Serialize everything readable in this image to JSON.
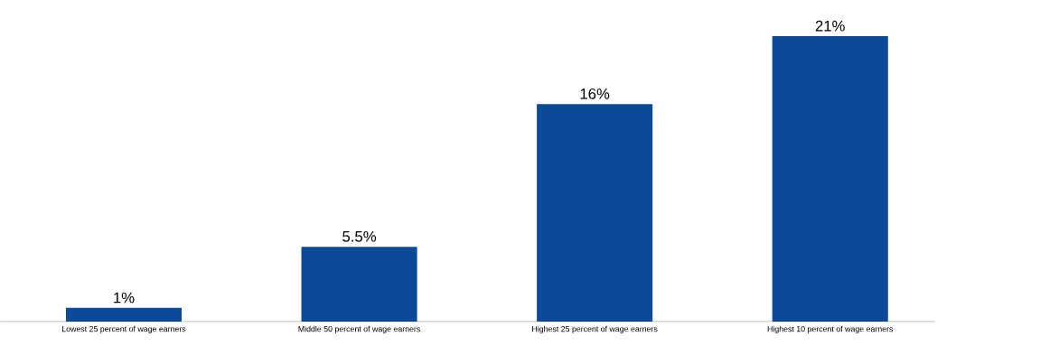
{
  "chart_data": {
    "type": "bar",
    "categories": [
      "Lowest 25 percent of wage earners",
      "Middle 50 percent of wage earners",
      "Highest 25 percent of wage earners",
      "Highest 10 percent of wage earners"
    ],
    "values": [
      1,
      5.5,
      16,
      21
    ],
    "value_labels": [
      "1%",
      "5.5%",
      "16%",
      "21%"
    ],
    "color": "#0a4a98"
  }
}
